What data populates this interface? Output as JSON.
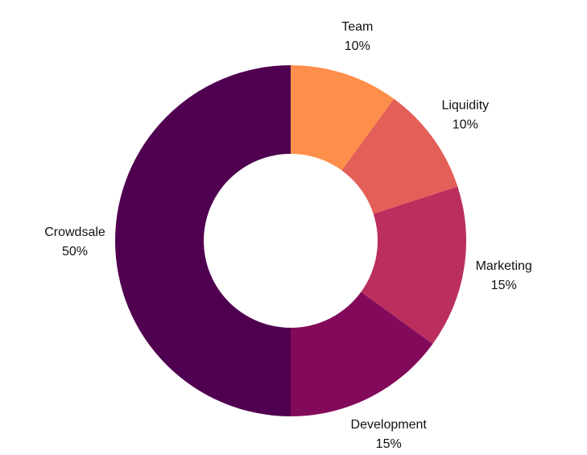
{
  "chart_data": {
    "type": "pie",
    "variant": "donut",
    "title": "",
    "start": "12 o'clock",
    "direction": "clockwise",
    "labels_outside": true,
    "legend": "none",
    "slices": [
      {
        "label": "Team",
        "value": 10,
        "value_label": "10%",
        "color": "#fd8f4a"
      },
      {
        "label": "Liquidity",
        "value": 10,
        "value_label": "10%",
        "color": "#e35f57"
      },
      {
        "label": "Marketing",
        "value": 15,
        "value_label": "15%",
        "color": "#bb2f5f"
      },
      {
        "label": "Development",
        "value": 15,
        "value_label": "15%",
        "color": "#830a5b"
      },
      {
        "label": "Crowdsale",
        "value": 50,
        "value_label": "50%",
        "color": "#4f0050"
      }
    ]
  }
}
